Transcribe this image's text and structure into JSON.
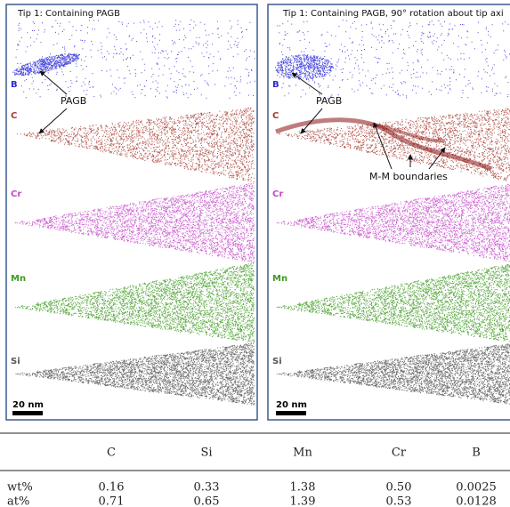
{
  "panels": [
    {
      "title": "Tip 1: Containing PAGB",
      "elements": [
        "B",
        "C",
        "Cr",
        "Mn",
        "Si"
      ],
      "annotations": [
        "PAGB"
      ],
      "scale_bar": "20 nm"
    },
    {
      "title": "Tip 1: Containing PAGB, 90° rotation about tip axi",
      "elements": [
        "B",
        "C",
        "Cr",
        "Mn",
        "Si"
      ],
      "annotations": [
        "PAGB",
        "M-M boundaries"
      ],
      "scale_bar": "20 nm"
    }
  ],
  "table": {
    "columns": [
      "C",
      "Si",
      "Mn",
      "Cr",
      "B"
    ],
    "rows": [
      {
        "label": "wt%",
        "values": [
          "0.16",
          "0.33",
          "1.38",
          "0.50",
          "0.0025"
        ]
      },
      {
        "label": "at%",
        "values": [
          "0.71",
          "0.65",
          "1.39",
          "0.53",
          "0.0128"
        ]
      }
    ]
  }
}
